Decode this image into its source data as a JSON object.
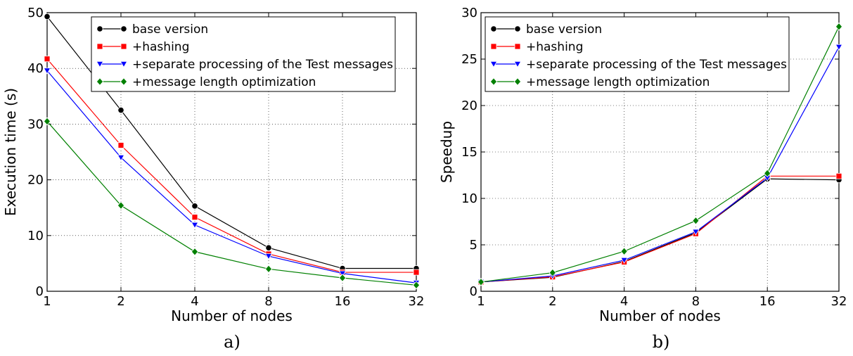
{
  "chart_data": [
    {
      "type": "line",
      "caption": "a)",
      "xlabel": "Number of nodes",
      "ylabel": "Execution time (s)",
      "x_ticks": [
        "1",
        "2",
        "4",
        "8",
        "16",
        "32"
      ],
      "y_ticks": [
        "0",
        "10",
        "20",
        "30",
        "40",
        "50"
      ],
      "ylim": [
        0,
        50
      ],
      "x_scale": "log2",
      "grid": true,
      "legend_position": "top-right",
      "x": [
        1,
        2,
        4,
        8,
        16,
        32
      ],
      "series": [
        {
          "name": "base version",
          "color": "#000000",
          "marker": "circle",
          "values": [
            49.3,
            32.5,
            15.3,
            7.8,
            4.1,
            4.1
          ]
        },
        {
          "name": "+hashing",
          "color": "#ff0000",
          "marker": "square",
          "values": [
            41.7,
            26.2,
            13.3,
            6.7,
            3.4,
            3.4
          ]
        },
        {
          "name": "+separate processing of the Test messages",
          "color": "#0000ff",
          "marker": "triangle-down",
          "values": [
            39.6,
            24.0,
            11.9,
            6.3,
            3.2,
            1.5
          ]
        },
        {
          "name": "+message length optimization",
          "color": "#008000",
          "marker": "diamond",
          "values": [
            30.5,
            15.4,
            7.1,
            4.0,
            2.4,
            1.1
          ]
        }
      ]
    },
    {
      "type": "line",
      "caption": "b)",
      "xlabel": "Number of nodes",
      "ylabel": "Speedup",
      "x_ticks": [
        "1",
        "2",
        "4",
        "8",
        "16",
        "32"
      ],
      "y_ticks": [
        "0",
        "5",
        "10",
        "15",
        "20",
        "25",
        "30"
      ],
      "ylim": [
        0,
        30
      ],
      "x_scale": "log2",
      "grid": true,
      "legend_position": "top-left",
      "x": [
        1,
        2,
        4,
        8,
        16,
        32
      ],
      "series": [
        {
          "name": "base version",
          "color": "#000000",
          "marker": "circle",
          "values": [
            1.0,
            1.5,
            3.2,
            6.3,
            12.1,
            12.0
          ]
        },
        {
          "name": "+hashing",
          "color": "#ff0000",
          "marker": "square",
          "values": [
            1.0,
            1.55,
            3.15,
            6.2,
            12.4,
            12.4
          ]
        },
        {
          "name": "+separate processing of the Test messages",
          "color": "#0000ff",
          "marker": "triangle-down",
          "values": [
            1.0,
            1.65,
            3.35,
            6.4,
            12.2,
            26.3
          ]
        },
        {
          "name": "+message length optimization",
          "color": "#008000",
          "marker": "diamond",
          "values": [
            1.0,
            2.0,
            4.3,
            7.6,
            12.7,
            28.5
          ]
        }
      ]
    }
  ]
}
